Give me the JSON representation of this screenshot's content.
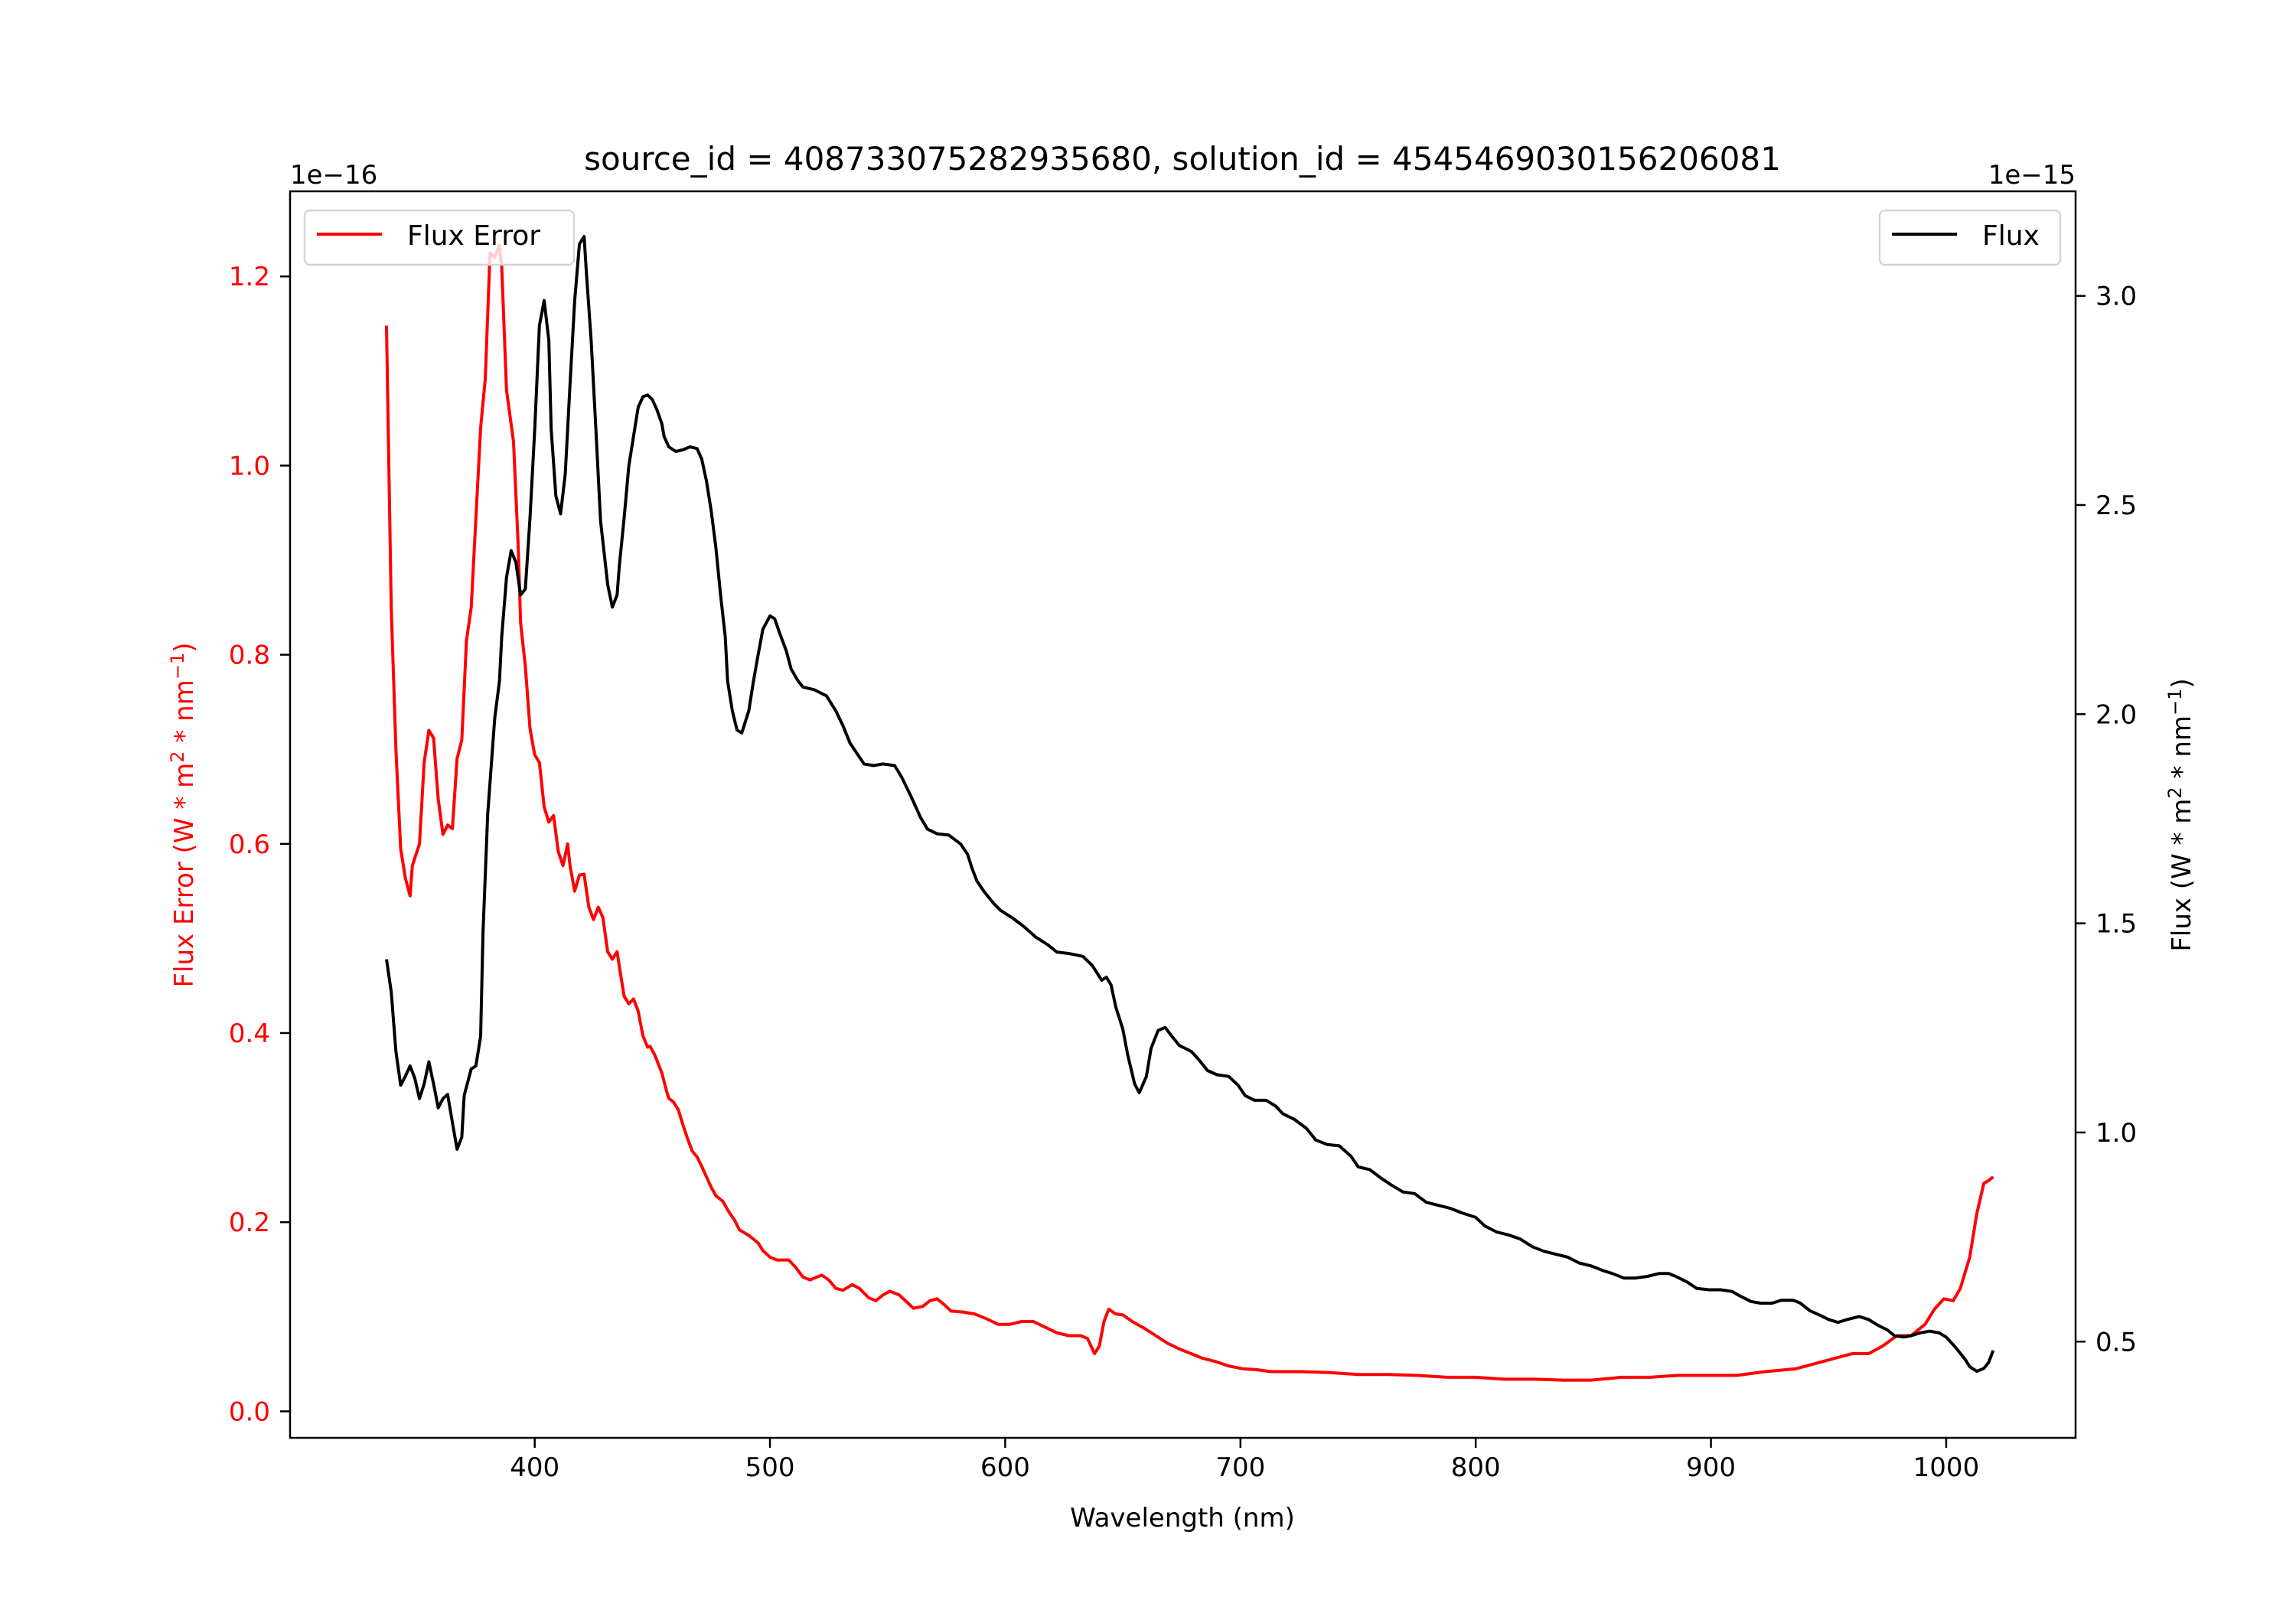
{
  "chart_data": {
    "type": "line",
    "title": "source_id = 408733075282935680, solution_id = 4545469030156206081",
    "xlabel": "Wavelength (nm)",
    "ylabel_left": "Flux Error (W * m^2 * nm^-1)",
    "ylabel_right": "Flux (W * m^2 * nm^-1)",
    "left_offset_label": "1e−16",
    "right_offset_label": "1e−15",
    "xlim": [
      296,
      1055
    ],
    "ylim_left": [
      -0.028,
      1.29
    ],
    "ylim_right": [
      0.27,
      3.25
    ],
    "xticks": [
      400,
      500,
      600,
      700,
      800,
      900,
      1000
    ],
    "xtick_labels": [
      "400",
      "500",
      "600",
      "700",
      "800",
      "900",
      "1000"
    ],
    "yticks_left": [
      0.0,
      0.2,
      0.4,
      0.6,
      0.8,
      1.0,
      1.2
    ],
    "ytick_labels_left": [
      "0.0",
      "0.2",
      "0.4",
      "0.6",
      "0.8",
      "1.0",
      "1.2"
    ],
    "yticks_right": [
      0.5,
      1.0,
      1.5,
      2.0,
      2.5,
      3.0
    ],
    "ytick_labels_right": [
      "0.5",
      "1.0",
      "1.5",
      "2.0",
      "2.5",
      "3.0"
    ],
    "grid": false,
    "colors": {
      "flux_error": "#ff0000",
      "flux": "#000000",
      "left_axis_text": "#ff0000"
    },
    "legends": [
      {
        "label": "Flux Error",
        "placement": "upper-left",
        "color": "#ff0000"
      },
      {
        "label": "Flux",
        "placement": "upper-right",
        "color": "#000000"
      }
    ],
    "series": [
      {
        "name": "Flux Error",
        "axis": "left",
        "scale": "1e-16",
        "x": [
          337,
          339,
          341,
          343,
          345,
          347,
          348,
          351,
          353,
          355,
          357,
          359,
          361,
          363,
          365,
          367,
          369,
          371,
          373,
          375,
          377,
          379,
          381,
          383,
          385,
          386,
          388,
          391,
          393,
          394,
          396,
          398,
          400,
          402,
          404,
          406,
          408,
          410,
          412,
          414,
          415,
          417,
          419,
          421,
          423,
          425,
          427,
          429,
          431,
          433,
          435,
          436,
          438,
          440,
          442,
          444,
          446,
          448,
          449,
          451,
          454,
          456,
          457,
          459,
          461,
          463,
          465,
          467,
          469,
          471,
          473,
          475,
          477,
          480,
          482,
          485,
          487,
          491,
          495,
          497,
          500,
          503,
          508,
          511,
          514,
          517,
          522,
          525,
          528,
          531,
          535,
          538,
          542,
          545,
          548,
          551,
          555,
          558,
          561,
          565,
          568,
          571,
          574,
          577,
          582,
          587,
          592,
          597,
          602,
          607,
          612,
          617,
          622,
          627,
          632,
          635,
          638,
          640,
          642,
          644,
          647,
          650,
          654,
          659,
          664,
          669,
          674,
          679,
          684,
          689,
          695,
          701,
          707,
          713,
          726,
          738,
          750,
          763,
          775,
          788,
          800,
          812,
          825,
          837,
          849,
          862,
          874,
          886,
          899,
          911,
          923,
          936,
          948,
          960,
          967,
          973,
          979,
          985,
          991,
          995,
          999,
          1003,
          1006,
          1010,
          1013,
          1016,
          1018,
          1020
        ],
        "y": [
          1.148,
          0.85,
          0.7,
          0.595,
          0.564,
          0.545,
          0.577,
          0.6,
          0.686,
          0.72,
          0.712,
          0.647,
          0.61,
          0.62,
          0.616,
          0.69,
          0.71,
          0.815,
          0.85,
          0.944,
          1.04,
          1.092,
          1.225,
          1.22,
          1.233,
          1.21,
          1.08,
          1.025,
          0.913,
          0.834,
          0.788,
          0.722,
          0.694,
          0.686,
          0.639,
          0.623,
          0.63,
          0.592,
          0.577,
          0.6,
          0.577,
          0.55,
          0.567,
          0.568,
          0.533,
          0.52,
          0.533,
          0.522,
          0.486,
          0.478,
          0.486,
          0.47,
          0.439,
          0.431,
          0.436,
          0.423,
          0.397,
          0.385,
          0.386,
          0.377,
          0.358,
          0.339,
          0.331,
          0.327,
          0.319,
          0.303,
          0.288,
          0.275,
          0.269,
          0.259,
          0.248,
          0.237,
          0.228,
          0.222,
          0.213,
          0.202,
          0.192,
          0.186,
          0.178,
          0.17,
          0.163,
          0.16,
          0.16,
          0.152,
          0.142,
          0.139,
          0.144,
          0.139,
          0.13,
          0.128,
          0.134,
          0.13,
          0.12,
          0.117,
          0.123,
          0.127,
          0.123,
          0.116,
          0.109,
          0.111,
          0.117,
          0.119,
          0.113,
          0.106,
          0.105,
          0.103,
          0.098,
          0.092,
          0.092,
          0.095,
          0.095,
          0.089,
          0.083,
          0.08,
          0.08,
          0.077,
          0.061,
          0.069,
          0.095,
          0.108,
          0.103,
          0.102,
          0.095,
          0.088,
          0.08,
          0.072,
          0.066,
          0.061,
          0.056,
          0.053,
          0.048,
          0.045,
          0.044,
          0.042,
          0.042,
          0.041,
          0.039,
          0.039,
          0.038,
          0.036,
          0.036,
          0.034,
          0.034,
          0.033,
          0.033,
          0.036,
          0.036,
          0.038,
          0.038,
          0.038,
          0.042,
          0.045,
          0.053,
          0.061,
          0.061,
          0.069,
          0.08,
          0.08,
          0.092,
          0.108,
          0.119,
          0.117,
          0.13,
          0.163,
          0.209,
          0.241,
          0.244,
          0.248
        ]
      },
      {
        "name": "Flux",
        "axis": "right",
        "scale": "1e-15",
        "x": [
          337,
          339,
          341,
          343,
          345,
          347,
          349,
          351,
          353,
          355,
          357,
          359,
          361,
          363,
          365,
          367,
          369,
          370,
          373,
          375,
          377,
          378,
          380,
          383,
          385,
          386,
          388,
          390,
          392,
          394,
          396,
          398,
          400,
          402,
          404,
          406,
          407,
          409,
          411,
          413,
          415,
          417,
          419,
          421,
          422,
          424,
          426,
          428,
          431,
          433,
          435,
          436,
          438,
          440,
          443,
          444,
          446,
          448,
          450,
          452,
          454,
          455,
          457,
          460,
          463,
          466,
          469,
          471,
          473,
          475,
          477,
          479,
          481,
          482,
          484,
          486,
          488,
          491,
          493,
          495,
          497,
          500,
          502,
          504,
          507,
          509,
          512,
          514,
          519,
          524,
          528,
          531,
          534,
          537,
          540,
          544,
          548,
          553,
          556,
          560,
          564,
          567,
          571,
          576,
          581,
          584,
          586,
          588,
          591,
          595,
          598,
          603,
          608,
          613,
          618,
          622,
          627,
          633,
          637,
          641,
          643,
          645,
          647,
          650,
          652,
          655,
          657,
          660,
          662,
          665,
          668,
          670,
          674,
          679,
          682,
          686,
          690,
          695,
          699,
          702,
          706,
          711,
          715,
          718,
          723,
          728,
          732,
          737,
          742,
          747,
          750,
          755,
          760,
          764,
          769,
          774,
          779,
          784,
          789,
          794,
          800,
          804,
          809,
          814,
          819,
          824,
          829,
          834,
          839,
          844,
          849,
          854,
          858,
          863,
          868,
          873,
          878,
          882,
          885,
          890,
          894,
          899,
          904,
          909,
          912,
          917,
          921,
          926,
          930,
          935,
          938,
          942,
          946,
          950,
          954,
          958,
          963,
          967,
          971,
          975,
          978,
          982,
          985,
          989,
          993,
          997,
          1000,
          1004,
          1008,
          1010,
          1013,
          1016,
          1018,
          1020
        ],
        "y": [
          1.414,
          1.336,
          1.194,
          1.113,
          1.134,
          1.159,
          1.13,
          1.081,
          1.116,
          1.169,
          1.116,
          1.059,
          1.081,
          1.091,
          1.024,
          0.96,
          0.989,
          1.088,
          1.152,
          1.159,
          1.23,
          1.477,
          1.76,
          1.99,
          2.079,
          2.186,
          2.327,
          2.391,
          2.363,
          2.285,
          2.299,
          2.469,
          2.681,
          2.929,
          2.989,
          2.894,
          2.681,
          2.522,
          2.479,
          2.575,
          2.788,
          2.989,
          3.124,
          3.142,
          3.053,
          2.894,
          2.681,
          2.462,
          2.31,
          2.256,
          2.285,
          2.356,
          2.469,
          2.593,
          2.699,
          2.734,
          2.759,
          2.763,
          2.752,
          2.727,
          2.695,
          2.664,
          2.639,
          2.628,
          2.632,
          2.639,
          2.635,
          2.61,
          2.557,
          2.487,
          2.398,
          2.285,
          2.186,
          2.079,
          2.008,
          1.962,
          1.955,
          2.008,
          2.079,
          2.143,
          2.203,
          2.235,
          2.228,
          2.196,
          2.15,
          2.108,
          2.079,
          2.065,
          2.058,
          2.044,
          2.008,
          1.973,
          1.931,
          1.906,
          1.881,
          1.877,
          1.881,
          1.877,
          1.849,
          1.803,
          1.753,
          1.725,
          1.714,
          1.711,
          1.69,
          1.665,
          1.63,
          1.601,
          1.576,
          1.548,
          1.531,
          1.513,
          1.492,
          1.467,
          1.449,
          1.431,
          1.428,
          1.421,
          1.399,
          1.364,
          1.371,
          1.353,
          1.3,
          1.247,
          1.187,
          1.116,
          1.095,
          1.134,
          1.201,
          1.244,
          1.251,
          1.236,
          1.208,
          1.194,
          1.176,
          1.148,
          1.138,
          1.134,
          1.113,
          1.088,
          1.077,
          1.077,
          1.063,
          1.045,
          1.031,
          1.01,
          0.982,
          0.971,
          0.968,
          0.943,
          0.918,
          0.911,
          0.89,
          0.875,
          0.858,
          0.854,
          0.833,
          0.826,
          0.819,
          0.808,
          0.797,
          0.776,
          0.762,
          0.755,
          0.745,
          0.727,
          0.716,
          0.709,
          0.702,
          0.688,
          0.681,
          0.67,
          0.663,
          0.652,
          0.652,
          0.656,
          0.663,
          0.663,
          0.656,
          0.642,
          0.627,
          0.624,
          0.624,
          0.62,
          0.61,
          0.596,
          0.592,
          0.592,
          0.599,
          0.599,
          0.592,
          0.574,
          0.564,
          0.553,
          0.546,
          0.553,
          0.56,
          0.553,
          0.539,
          0.528,
          0.514,
          0.511,
          0.514,
          0.521,
          0.525,
          0.521,
          0.511,
          0.486,
          0.458,
          0.44,
          0.429,
          0.436,
          0.45,
          0.479
        ]
      }
    ]
  }
}
